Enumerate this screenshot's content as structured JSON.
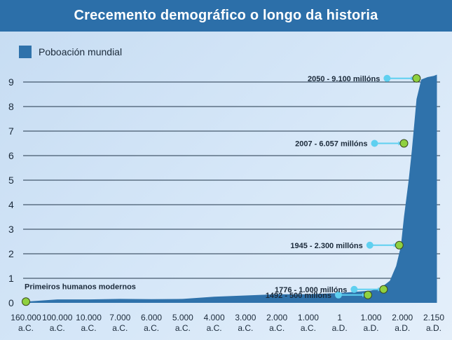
{
  "header": {
    "title": "Crecemento demográfico o longo da historia"
  },
  "legend": {
    "label": "Poboación mundial",
    "color": "#2f72ab"
  },
  "chart_data": {
    "type": "area",
    "title": "Crecemento demográfico o longo da historia",
    "series": [
      {
        "name": "Poboación mundial",
        "color": "#2f72ab"
      }
    ],
    "ylim": [
      0,
      9.3
    ],
    "yticks": [
      0,
      1,
      2,
      3,
      4,
      5,
      6,
      7,
      8,
      9
    ],
    "grid": true,
    "legend_position": "top-left",
    "xticks": [
      [
        "160.000",
        "a.C."
      ],
      [
        "100.000",
        "a.C."
      ],
      [
        "10.000",
        "a.C."
      ],
      [
        "7.000",
        "a.C."
      ],
      [
        "6.000",
        "a.C."
      ],
      [
        "5.000",
        "a.C."
      ],
      [
        "4.000",
        "a.C."
      ],
      [
        "3.000",
        "a.C."
      ],
      [
        "2.000",
        "a.C."
      ],
      [
        "1.000",
        "a.C."
      ],
      [
        "1",
        "a.D."
      ],
      [
        "1.000",
        "a.D."
      ],
      [
        "2.000",
        "a.D."
      ],
      [
        "2.150",
        "a.D."
      ]
    ],
    "x_positions": [
      0,
      1,
      2,
      3,
      4,
      5,
      6,
      7,
      8,
      9,
      10,
      11,
      12,
      13
    ],
    "area_x": [
      0,
      1,
      2,
      3,
      4,
      5,
      6,
      7,
      8,
      9,
      10,
      10.5,
      11,
      11.3,
      11.6,
      11.8,
      11.95,
      12.05,
      12.2,
      12.3,
      12.45,
      12.6,
      12.8,
      13,
      13.1
    ],
    "area_y": [
      0.05,
      0.14,
      0.14,
      0.16,
      0.15,
      0.16,
      0.25,
      0.3,
      0.35,
      0.35,
      0.4,
      0.45,
      0.5,
      0.6,
      0.9,
      1.5,
      2.3,
      3.5,
      5.0,
      6.2,
      8.3,
      9.1,
      9.2,
      9.25,
      9.3
    ],
    "annotations": [
      {
        "label": "Primeiros humanos modernos",
        "x": 0,
        "y": 0.05
      },
      {
        "label": "1492 - 500 millóns",
        "x": 10.9,
        "y": 0.32
      },
      {
        "label": "1776 - 1.000 millóns",
        "x": 11.4,
        "y": 0.55
      },
      {
        "label": "1945 - 2.300 millóns",
        "x": 11.9,
        "y": 2.35
      },
      {
        "label": "2007 - 6.057 millóns",
        "x": 12.05,
        "y": 6.5
      },
      {
        "label": "2050 - 9.100 millóns",
        "x": 12.45,
        "y": 9.15
      }
    ],
    "marker_color": "#8fd13f",
    "pointer_color": "#5fd0f0"
  }
}
